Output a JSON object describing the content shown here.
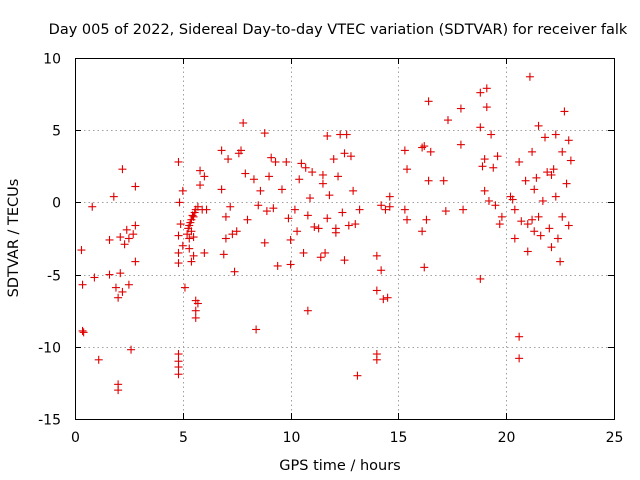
{
  "chart_data": {
    "type": "scatter",
    "title": "Day 005 of 2022, Sidereal Day-to-day VTEC variation (SDTVAR) for receiver falk",
    "xlabel": "GPS time / hours",
    "ylabel": "SDTVAR / TECUs",
    "xlim": [
      0,
      25
    ],
    "ylim": [
      -15,
      10
    ],
    "xticks": [
      0,
      5,
      10,
      15,
      20,
      25
    ],
    "yticks": [
      -15,
      -10,
      -5,
      0,
      5,
      10
    ],
    "grid": true,
    "marker": "plus",
    "color": "#e00000",
    "series": [
      {
        "name": "SDTVAR",
        "points": [
          [
            0.3,
            -3.3
          ],
          [
            0.35,
            -5.7
          ],
          [
            0.35,
            -8.9
          ],
          [
            0.4,
            -9.0
          ],
          [
            0.8,
            -0.3
          ],
          [
            0.9,
            -5.2
          ],
          [
            1.1,
            -10.9
          ],
          [
            1.6,
            -2.6
          ],
          [
            1.6,
            -5.0
          ],
          [
            1.8,
            0.4
          ],
          [
            1.9,
            -5.9
          ],
          [
            2.0,
            -6.6
          ],
          [
            2.0,
            -12.6
          ],
          [
            2.0,
            -13.0
          ],
          [
            2.1,
            -2.4
          ],
          [
            2.1,
            -4.9
          ],
          [
            2.2,
            2.3
          ],
          [
            2.2,
            -6.2
          ],
          [
            2.3,
            -2.9
          ],
          [
            2.4,
            -1.9
          ],
          [
            2.5,
            -2.5
          ],
          [
            2.5,
            -5.7
          ],
          [
            2.6,
            -10.2
          ],
          [
            2.7,
            -2.2
          ],
          [
            2.8,
            1.1
          ],
          [
            2.8,
            -4.1
          ],
          [
            2.8,
            -1.6
          ],
          [
            4.8,
            2.8
          ],
          [
            4.8,
            -2.3
          ],
          [
            4.8,
            -3.5
          ],
          [
            4.8,
            -4.2
          ],
          [
            4.8,
            -10.5
          ],
          [
            4.8,
            -11.0
          ],
          [
            4.8,
            -11.4
          ],
          [
            4.8,
            -11.9
          ],
          [
            4.85,
            0.0
          ],
          [
            4.9,
            -1.5
          ],
          [
            5.0,
            -3.0
          ],
          [
            5.0,
            0.8
          ],
          [
            5.1,
            -5.9
          ],
          [
            5.2,
            -2.2
          ],
          [
            5.25,
            -1.8
          ],
          [
            5.3,
            -1.6
          ],
          [
            5.3,
            -2.5
          ],
          [
            5.3,
            -3.2
          ],
          [
            5.35,
            -1.4
          ],
          [
            5.4,
            -1.2
          ],
          [
            5.4,
            -2.0
          ],
          [
            5.4,
            -4.1
          ],
          [
            5.45,
            -0.9
          ],
          [
            5.5,
            -1.0
          ],
          [
            5.5,
            -2.4
          ],
          [
            5.5,
            -3.7
          ],
          [
            5.55,
            -0.7
          ],
          [
            5.6,
            -0.5
          ],
          [
            5.6,
            -6.8
          ],
          [
            5.6,
            -7.5
          ],
          [
            5.6,
            -8.0
          ],
          [
            5.7,
            -0.3
          ],
          [
            5.7,
            -7.0
          ],
          [
            5.8,
            1.2
          ],
          [
            5.8,
            2.2
          ],
          [
            5.9,
            -0.5
          ],
          [
            6.0,
            -3.5
          ],
          [
            6.0,
            1.8
          ],
          [
            6.1,
            -0.5
          ],
          [
            6.8,
            0.9
          ],
          [
            6.8,
            3.6
          ],
          [
            6.9,
            -3.6
          ],
          [
            7.0,
            -1.0
          ],
          [
            7.0,
            -2.5
          ],
          [
            7.1,
            3.0
          ],
          [
            7.2,
            -0.3
          ],
          [
            7.3,
            -2.2
          ],
          [
            7.4,
            -4.8
          ],
          [
            7.5,
            -2.0
          ],
          [
            7.6,
            3.4
          ],
          [
            7.7,
            3.6
          ],
          [
            7.8,
            5.5
          ],
          [
            7.9,
            2.0
          ],
          [
            8.0,
            -1.2
          ],
          [
            8.3,
            1.6
          ],
          [
            8.4,
            -8.8
          ],
          [
            8.5,
            -0.2
          ],
          [
            8.6,
            0.8
          ],
          [
            8.8,
            4.8
          ],
          [
            8.8,
            -2.8
          ],
          [
            8.9,
            -0.6
          ],
          [
            9.0,
            1.8
          ],
          [
            9.1,
            3.1
          ],
          [
            9.2,
            -0.4
          ],
          [
            9.3,
            2.8
          ],
          [
            9.4,
            -4.4
          ],
          [
            9.6,
            0.9
          ],
          [
            9.8,
            2.8
          ],
          [
            9.9,
            -1.1
          ],
          [
            10.0,
            -2.6
          ],
          [
            10.0,
            -4.3
          ],
          [
            10.2,
            -0.5
          ],
          [
            10.3,
            -2.0
          ],
          [
            10.4,
            1.6
          ],
          [
            10.5,
            2.7
          ],
          [
            10.6,
            -3.5
          ],
          [
            10.7,
            2.4
          ],
          [
            10.8,
            -0.9
          ],
          [
            10.8,
            -7.5
          ],
          [
            10.9,
            0.3
          ],
          [
            11.0,
            2.1
          ],
          [
            11.1,
            -1.7
          ],
          [
            11.3,
            -1.8
          ],
          [
            11.4,
            -3.8
          ],
          [
            11.5,
            1.9
          ],
          [
            11.5,
            1.3
          ],
          [
            11.6,
            -3.5
          ],
          [
            11.7,
            -1.1
          ],
          [
            11.7,
            4.6
          ],
          [
            11.8,
            0.5
          ],
          [
            12.0,
            3.0
          ],
          [
            12.1,
            -1.8
          ],
          [
            12.1,
            -2.1
          ],
          [
            12.2,
            1.8
          ],
          [
            12.3,
            4.7
          ],
          [
            12.4,
            -0.7
          ],
          [
            12.5,
            3.4
          ],
          [
            12.5,
            -4.0
          ],
          [
            12.6,
            4.7
          ],
          [
            12.7,
            -1.6
          ],
          [
            12.8,
            3.2
          ],
          [
            12.9,
            0.8
          ],
          [
            13.0,
            -1.5
          ],
          [
            13.1,
            -12.0
          ],
          [
            13.2,
            -0.5
          ],
          [
            14.0,
            -3.7
          ],
          [
            14.0,
            -6.1
          ],
          [
            14.0,
            -10.5
          ],
          [
            14.0,
            -10.9
          ],
          [
            14.2,
            -0.2
          ],
          [
            14.2,
            -4.7
          ],
          [
            14.3,
            -6.7
          ],
          [
            14.4,
            -0.5
          ],
          [
            14.5,
            -6.6
          ],
          [
            14.6,
            -0.3
          ],
          [
            14.6,
            0.4
          ],
          [
            15.3,
            3.6
          ],
          [
            15.3,
            -0.5
          ],
          [
            15.4,
            -1.2
          ],
          [
            15.4,
            2.3
          ],
          [
            16.1,
            -2.0
          ],
          [
            16.1,
            3.8
          ],
          [
            16.2,
            3.9
          ],
          [
            16.2,
            -4.5
          ],
          [
            16.3,
            -1.2
          ],
          [
            16.4,
            1.5
          ],
          [
            16.4,
            7.0
          ],
          [
            16.5,
            3.5
          ],
          [
            17.1,
            1.5
          ],
          [
            17.2,
            -0.6
          ],
          [
            17.3,
            5.7
          ],
          [
            17.9,
            4.0
          ],
          [
            17.9,
            6.5
          ],
          [
            18.0,
            -0.5
          ],
          [
            18.8,
            7.6
          ],
          [
            18.8,
            5.2
          ],
          [
            18.8,
            -5.3
          ],
          [
            18.9,
            2.5
          ],
          [
            19.0,
            3.0
          ],
          [
            19.0,
            0.8
          ],
          [
            19.1,
            7.9
          ],
          [
            19.1,
            6.6
          ],
          [
            19.2,
            0.1
          ],
          [
            19.3,
            4.7
          ],
          [
            19.4,
            2.4
          ],
          [
            19.5,
            -0.2
          ],
          [
            19.6,
            3.2
          ],
          [
            19.7,
            -1.5
          ],
          [
            19.8,
            -1.0
          ],
          [
            20.2,
            0.4
          ],
          [
            20.3,
            0.2
          ],
          [
            20.4,
            -0.5
          ],
          [
            20.4,
            -2.5
          ],
          [
            20.6,
            2.8
          ],
          [
            20.6,
            -9.3
          ],
          [
            20.6,
            -10.8
          ],
          [
            20.7,
            -1.3
          ],
          [
            20.9,
            1.5
          ],
          [
            21.0,
            -3.4
          ],
          [
            21.0,
            -1.5
          ],
          [
            21.1,
            8.7
          ],
          [
            21.2,
            3.5
          ],
          [
            21.2,
            -1.2
          ],
          [
            21.3,
            0.9
          ],
          [
            21.3,
            -2.0
          ],
          [
            21.4,
            1.7
          ],
          [
            21.5,
            -1.0
          ],
          [
            21.5,
            5.3
          ],
          [
            21.6,
            -2.3
          ],
          [
            21.7,
            0.1
          ],
          [
            21.8,
            4.5
          ],
          [
            21.9,
            2.1
          ],
          [
            22.0,
            -1.8
          ],
          [
            22.1,
            1.9
          ],
          [
            22.1,
            -3.1
          ],
          [
            22.2,
            2.3
          ],
          [
            22.3,
            4.7
          ],
          [
            22.3,
            0.4
          ],
          [
            22.4,
            -2.5
          ],
          [
            22.5,
            -4.1
          ],
          [
            22.6,
            3.5
          ],
          [
            22.6,
            -1.0
          ],
          [
            22.7,
            6.3
          ],
          [
            22.8,
            1.3
          ],
          [
            22.9,
            4.3
          ],
          [
            22.9,
            -1.6
          ],
          [
            23.0,
            2.9
          ]
        ]
      }
    ]
  }
}
